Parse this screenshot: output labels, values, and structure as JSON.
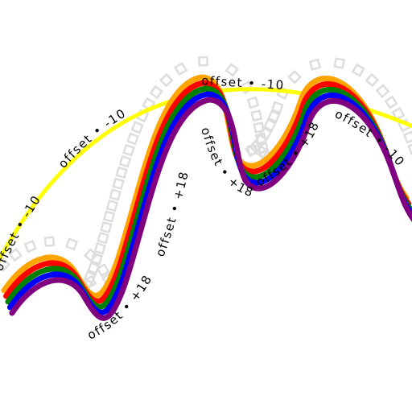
{
  "labels": {
    "negative": "offset • -10",
    "positive": "offset • +18"
  },
  "offsets": {
    "negative": -10,
    "positive": 18
  },
  "colors": {
    "yellow": "#ffff00",
    "orange": "#ffa500",
    "red": "#ff0000",
    "green": "#008000",
    "blue": "#0000ff",
    "purple": "#800080",
    "ghost_squares": "#dddddd",
    "text": "#000000"
  }
}
